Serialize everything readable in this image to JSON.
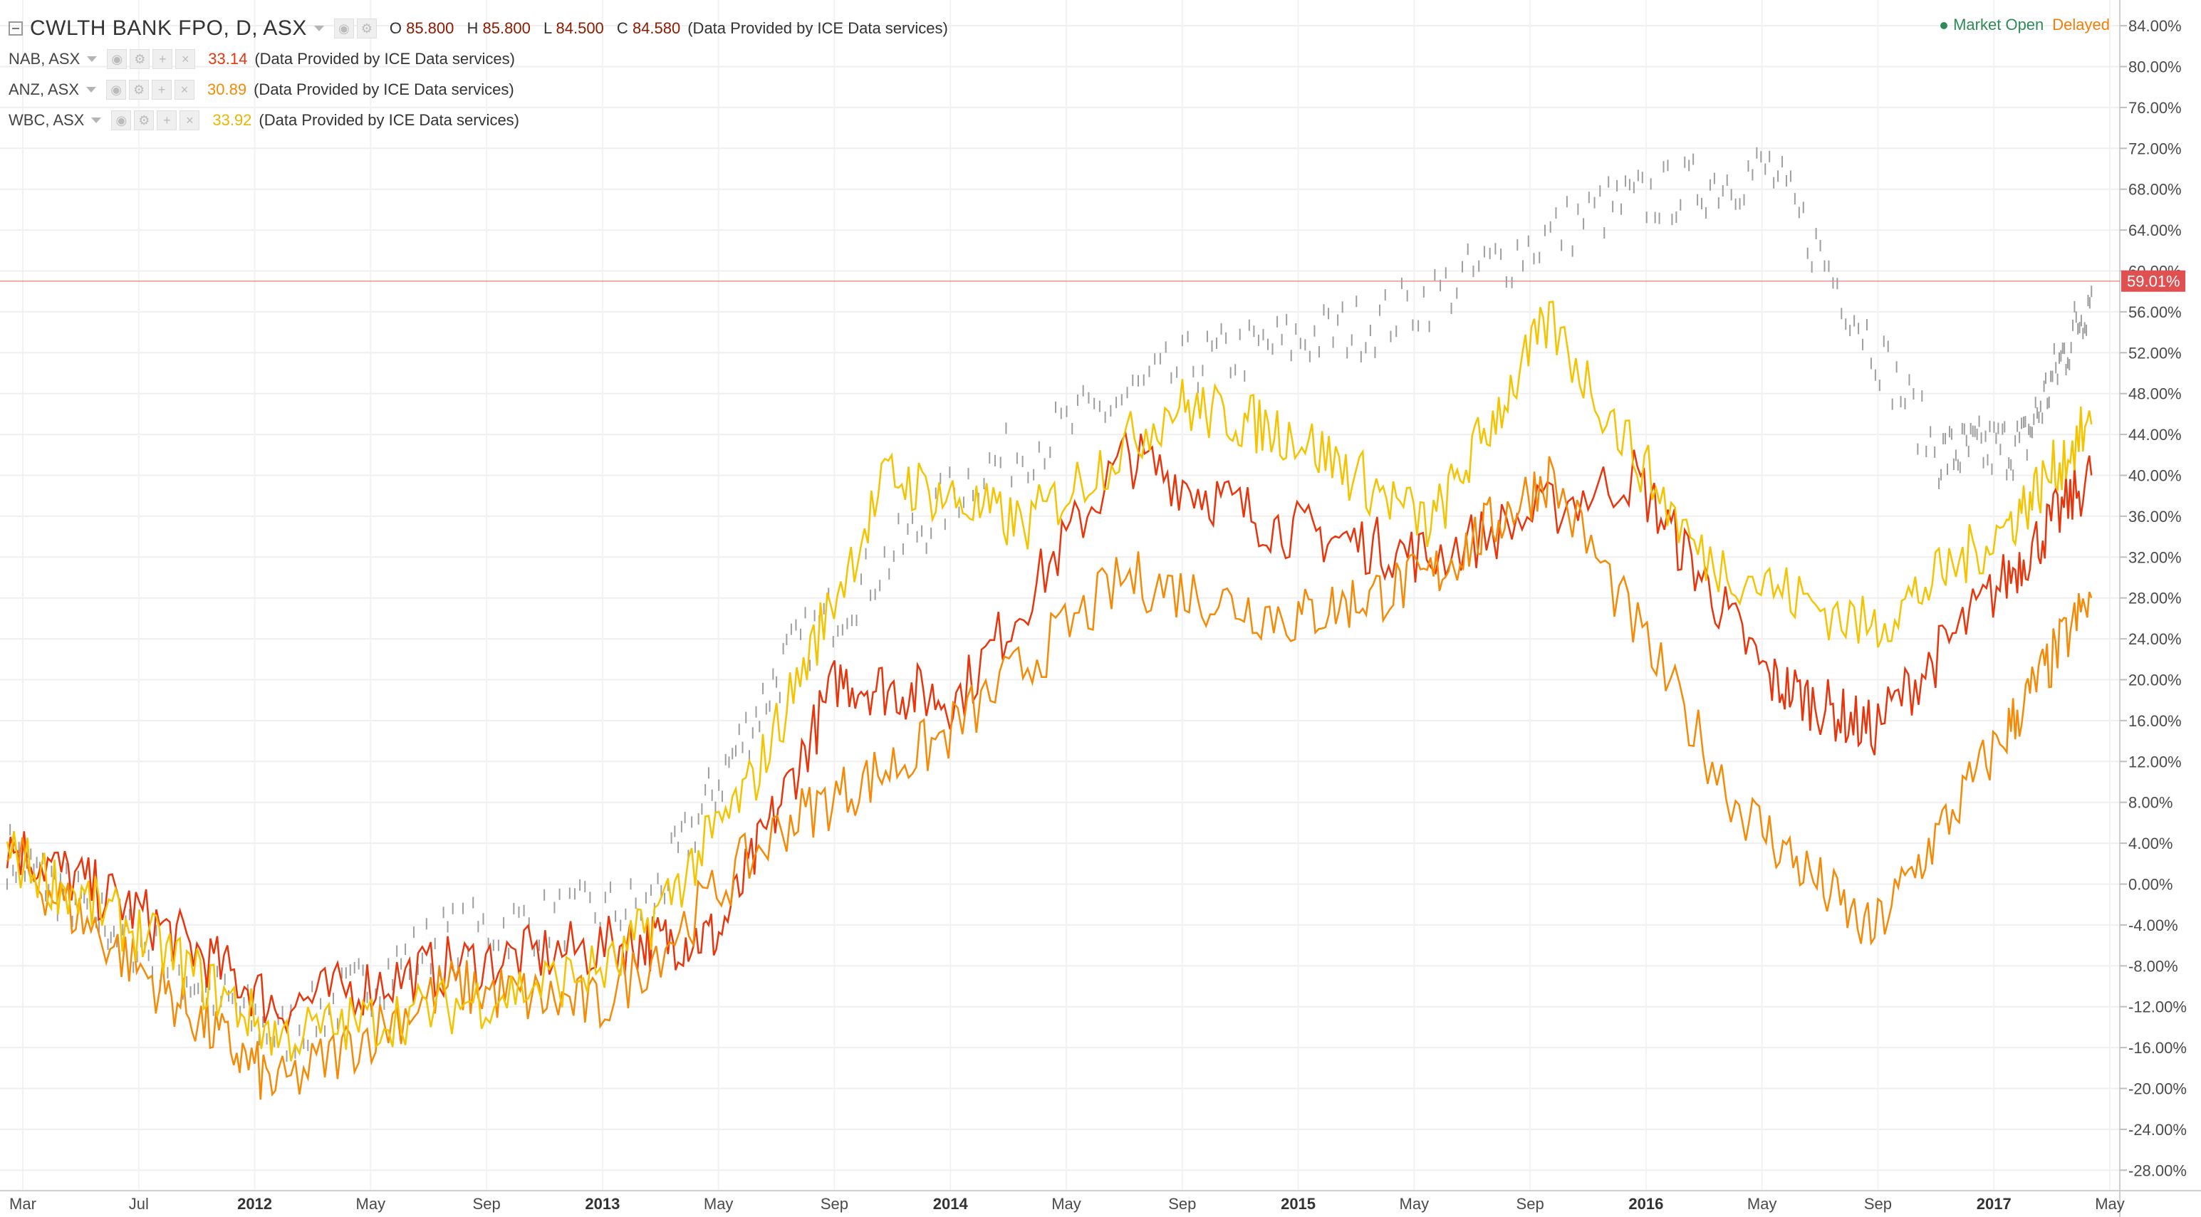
{
  "legend": {
    "main": {
      "title": "CWLTH BANK FPO, D, ASX",
      "o_label": "O",
      "o": "85.800",
      "h_label": "H",
      "h": "85.800",
      "l_label": "L",
      "l": "84.500",
      "c_label": "C",
      "c": "84.580",
      "note": "(Data Provided by ICE Data services)"
    },
    "compare": [
      {
        "symbol": "NAB, ASX",
        "value": "33.14",
        "note": "(Data Provided by ICE Data services)",
        "color": "#e8350c"
      },
      {
        "symbol": "ANZ, ASX",
        "value": "30.89",
        "note": "(Data Provided by ICE Data services)",
        "color": "#f58a07"
      },
      {
        "symbol": "WBC, ASX",
        "value": "33.92",
        "note": "(Data Provided by ICE Data services)",
        "color": "#f5c400"
      }
    ]
  },
  "status": {
    "market": "Market Open",
    "delay": "Delayed"
  },
  "colors": {
    "cba": "#9e9e9e",
    "nab": "#e8350c",
    "anz": "#f58a07",
    "wbc": "#f5c400",
    "price_line": "#e05050",
    "price_label_bg": "#e05050"
  },
  "chart_data": {
    "type": "line",
    "x_range": [
      "2011-03",
      "2017-05"
    ],
    "x_tick_labels": [
      "Mar",
      "Jul",
      "2012",
      "May",
      "Sep",
      "2013",
      "May",
      "Sep",
      "2014",
      "May",
      "Sep",
      "2015",
      "May",
      "Sep",
      "2016",
      "May",
      "Sep",
      "2017",
      "May"
    ],
    "y_range": [
      -28,
      86
    ],
    "y_unit": "%",
    "y_tick_labels": [
      "84.00%",
      "80.00%",
      "76.00%",
      "72.00%",
      "68.00%",
      "64.00%",
      "60.00%",
      "56.00%",
      "52.00%",
      "48.00%",
      "44.00%",
      "40.00%",
      "36.00%",
      "32.00%",
      "28.00%",
      "24.00%",
      "20.00%",
      "16.00%",
      "12.00%",
      "8.00%",
      "4.00%",
      "0.00%",
      "-4.00%",
      "-8.00%",
      "-12.00%",
      "-16.00%",
      "-20.00%",
      "-24.00%",
      "-28.00%"
    ],
    "grid": true,
    "current_price_label": "59.01%",
    "current_value": 59.01,
    "series": [
      {
        "name": "CWLTH BANK FPO",
        "style": "bars",
        "x": [
          0.0,
          0.35,
          0.8,
          1.3,
          1.9,
          2.3,
          2.85,
          3.5,
          4.05,
          4.7,
          5.2,
          5.7,
          5.95,
          6.15
        ],
        "values": [
          3,
          -5,
          -15,
          -5,
          -2,
          22,
          40,
          51,
          55,
          66,
          70,
          42,
          43,
          58
        ]
      },
      {
        "name": "NAB",
        "x": [
          0.0,
          0.4,
          0.8,
          1.3,
          1.8,
          2.1,
          2.45,
          2.8,
          3.3,
          3.75,
          4.2,
          4.8,
          5.2,
          5.5,
          5.9,
          6.15
        ],
        "values": [
          4,
          -3,
          -12,
          -8,
          -6,
          -5,
          20,
          18,
          42,
          35,
          32,
          40,
          20,
          15,
          30,
          40
        ]
      },
      {
        "name": "ANZ",
        "x": [
          0.0,
          0.45,
          0.8,
          1.3,
          1.75,
          2.3,
          2.75,
          3.3,
          3.8,
          4.2,
          4.55,
          5.1,
          5.5,
          5.9,
          6.15
        ],
        "values": [
          3,
          -10,
          -20,
          -10,
          -12,
          6,
          14,
          30,
          26,
          30,
          40,
          8,
          -5,
          15,
          28
        ]
      },
      {
        "name": "WBC",
        "x": [
          0.0,
          0.4,
          0.8,
          1.3,
          1.8,
          2.2,
          2.6,
          3.0,
          3.45,
          3.8,
          4.2,
          4.55,
          5.0,
          5.5,
          5.9,
          6.15
        ],
        "values": [
          3,
          -5,
          -15,
          -12,
          -8,
          10,
          40,
          35,
          47,
          44,
          35,
          55,
          32,
          25,
          35,
          45
        ]
      }
    ]
  }
}
